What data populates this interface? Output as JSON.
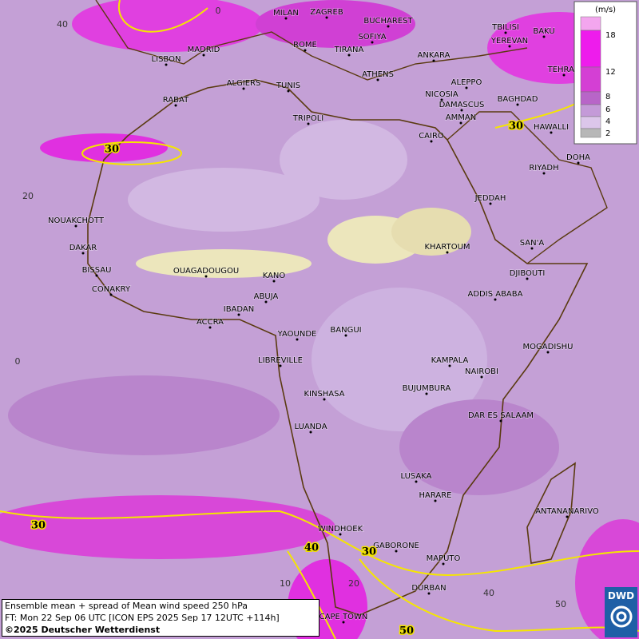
{
  "map": {
    "cities": [
      "MILAN",
      "ZAGREB",
      "BUCHAREST",
      "TBILISI",
      "BAKU",
      "MADRID",
      "ROME",
      "SOFIYA",
      "YEREVAN",
      "LISBON",
      "TIRANA",
      "ANKARA",
      "TEHRAN",
      "ALGIERS",
      "TUNIS",
      "ATHENS",
      "ALEPPO",
      "RABAT",
      "NICOSIA",
      "BAGHDAD",
      "DAMASCUS",
      "TRIPOLI",
      "AMMAN",
      "HAWALLI",
      "CAIRO",
      "DOHA",
      "RIYADH",
      "JEDDAH",
      "NOUAKCHOTT",
      "SAN'A",
      "DAKAR",
      "KHARTOUM",
      "BISSAU",
      "OUAGADOUGOU",
      "KANO",
      "DJIBOUTI",
      "CONAKRY",
      "ABUJA",
      "ADDIS ABABA",
      "IBADAN",
      "ACCRA",
      "YAOUNDE",
      "BANGUI",
      "MOGADISHU",
      "LIBREVILLE",
      "KAMPALA",
      "NAIROBI",
      "KINSHASA",
      "BUJUMBURA",
      "DAR ES SALAAM",
      "LUANDA",
      "LUSAKA",
      "HARARE",
      "ANTANANARIVO",
      "WINDHOEK",
      "GABORONE",
      "MAPUTO",
      "DURBAN",
      "CAPE TOWN"
    ],
    "contour_labels": [
      "30",
      "30",
      "30",
      "40",
      "30",
      "50"
    ],
    "graticule_labels": [
      "40",
      "20",
      "0",
      "0",
      "10",
      "20",
      "40",
      "50"
    ]
  },
  "legend": {
    "unit": "(m/s)",
    "bands": [
      {
        "color": "#f3a6ee"
      },
      {
        "color": "#ee1cec"
      },
      {
        "color": "#d43fd4"
      },
      {
        "color": "#b865c8"
      },
      {
        "color": "#c49ad8"
      },
      {
        "color": "#dcc6ea"
      },
      {
        "color": "#b7b7b7"
      }
    ],
    "labels": [
      "18",
      "12",
      "8",
      "6",
      "4",
      "2"
    ]
  },
  "footer": {
    "lines": [
      "Ensemble mean + spread of Mean wind speed 250 hPa",
      "FT: Mon 22 Sep 06 UTC [ICON EPS 2025 Sep 17 12UTC +114h]",
      "©2025 Deutscher Wetterdienst"
    ]
  },
  "logo": "DWD"
}
